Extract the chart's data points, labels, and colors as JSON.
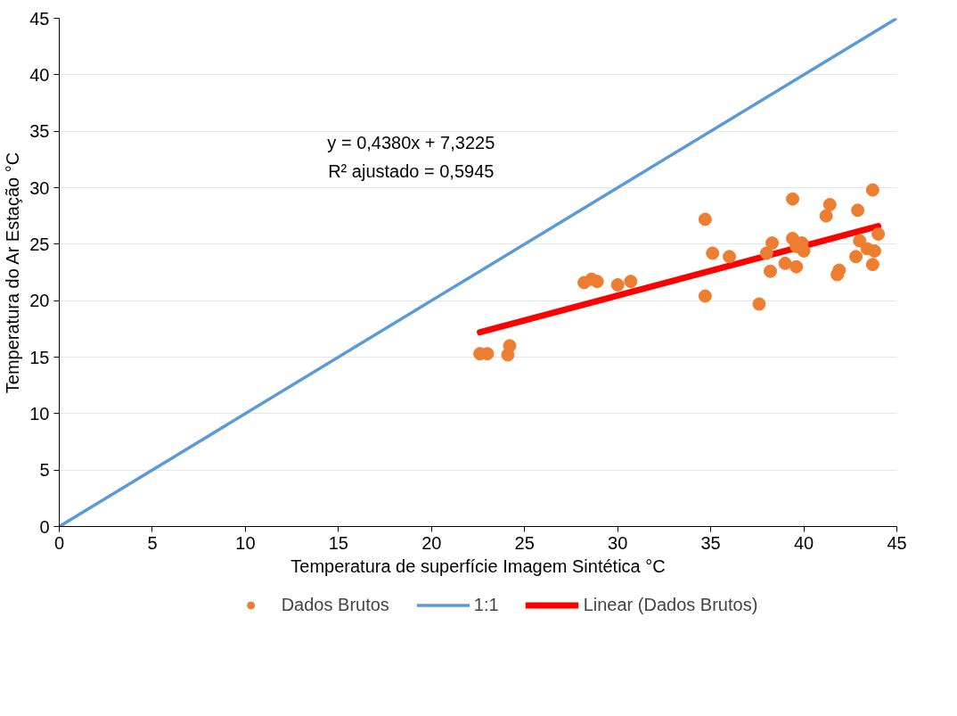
{
  "chart_data": {
    "type": "scatter",
    "xlabel": "Temperatura de superfície Imagem Sintética °C",
    "ylabel": "Temperatura do Ar Estação °C",
    "xlim": [
      0,
      45
    ],
    "ylim": [
      0,
      45
    ],
    "xticks": [
      0,
      5,
      10,
      15,
      20,
      25,
      30,
      35,
      40,
      45
    ],
    "yticks": [
      0,
      5,
      10,
      15,
      20,
      25,
      30,
      35,
      40,
      45
    ],
    "grid": "y",
    "legend": "bottom",
    "annotations": [
      "y = 0,4380x + 7,3225",
      "R² ajustado = 0,5945"
    ],
    "series": [
      {
        "name": "Dados Brutos",
        "marker": "circle",
        "color": "#ed7d31",
        "x": [
          22.6,
          23.0,
          24.1,
          24.2,
          28.2,
          28.6,
          28.9,
          30.0,
          30.7,
          34.7,
          34.7,
          35.1,
          36.0,
          37.6,
          38.0,
          38.2,
          38.3,
          39.0,
          39.4,
          39.4,
          39.6,
          39.9,
          40.0,
          41.2,
          41.4,
          41.8,
          41.9,
          42.9,
          43.0,
          42.8,
          43.4,
          43.8,
          43.7,
          43.7,
          44.0,
          39.6
        ],
        "values": [
          15.3,
          15.3,
          15.2,
          16.0,
          21.6,
          21.9,
          21.7,
          21.4,
          21.7,
          27.2,
          20.4,
          24.2,
          23.9,
          19.7,
          24.2,
          22.6,
          25.1,
          23.3,
          29.0,
          25.5,
          23.0,
          25.1,
          24.4,
          27.5,
          28.5,
          22.3,
          22.7,
          28.0,
          25.3,
          23.9,
          24.6,
          24.4,
          23.2,
          29.8,
          25.9,
          24.8
        ]
      },
      {
        "name": "1:1",
        "type": "line",
        "color": "#5b9bd5",
        "x": [
          0,
          45
        ],
        "values": [
          0,
          45
        ]
      },
      {
        "name": "Linear (Dados Brutos)",
        "type": "line",
        "color": "#ff0000",
        "x": [
          22.6,
          44.0
        ],
        "values": [
          17.2,
          26.6
        ]
      }
    ]
  }
}
